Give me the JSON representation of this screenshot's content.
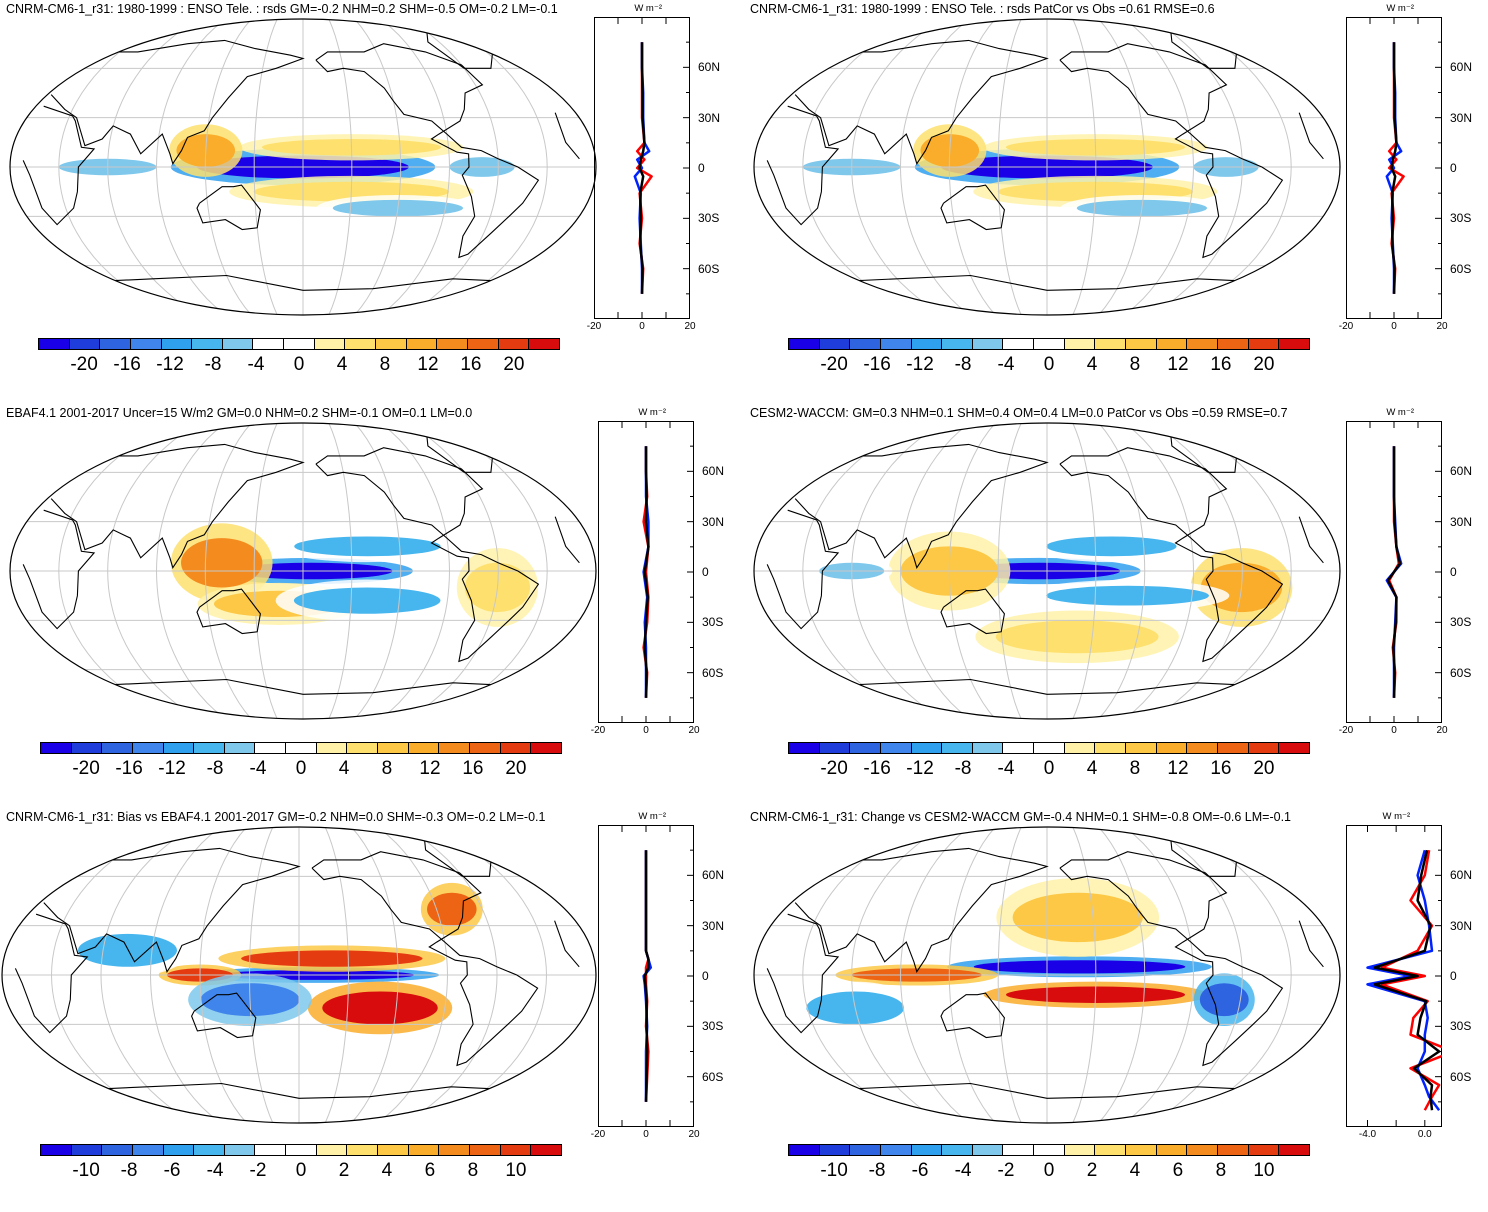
{
  "unit_label": "W m⁻²",
  "colors": {
    "palette": [
      "#1a00e6",
      "#1f3ddb",
      "#2f64e0",
      "#3f85ec",
      "#2fa0ee",
      "#48b6ee",
      "#7fc8ec",
      "#ffffff",
      "#ffffff",
      "#fff2a8",
      "#fee06e",
      "#fcc845",
      "#f9ad2a",
      "#f48b1e",
      "#ed6414",
      "#e53b10",
      "#d80c0c"
    ],
    "zonal_model": "#0022ff",
    "zonal_obs": "#ff0000",
    "zonal_mean": "#000000",
    "land_outline": "#000000",
    "grid": "#c8c8c8"
  },
  "panels": [
    {
      "title": "CNRM-CM6-1_r31: 1980-1999 : ENSO Tele. : rsds GM=-0.2 NHM=0.2 SHM=-0.5 OM=-0.2 LM=-0.1",
      "colorbar_labels": [
        "-20",
        "-16",
        "-12",
        "-8",
        "-4",
        "0",
        "4",
        "8",
        "12",
        "16",
        "20"
      ],
      "zonal_x_labels": [
        "-20",
        "0",
        "20"
      ],
      "lat_labels": [
        "60N",
        "30N",
        "0",
        "30S",
        "60S"
      ]
    },
    {
      "title": "CNRM-CM6-1_r31: 1980-1999 : ENSO Tele. : rsds PatCor vs Obs =0.61 RMSE=0.6",
      "colorbar_labels": [
        "-20",
        "-16",
        "-12",
        "-8",
        "-4",
        "0",
        "4",
        "8",
        "12",
        "16",
        "20"
      ],
      "zonal_x_labels": [
        "-20",
        "0",
        "20"
      ],
      "lat_labels": [
        "60N",
        "30N",
        "0",
        "30S",
        "60S"
      ]
    },
    {
      "title": "EBAF4.1 2001-2017 Uncer=15 W/m2 GM=0.0 NHM=0.2 SHM=-0.1 OM=0.1 LM=0.0",
      "colorbar_labels": [
        "-20",
        "-16",
        "-12",
        "-8",
        "-4",
        "0",
        "4",
        "8",
        "12",
        "16",
        "20"
      ],
      "zonal_x_labels": [
        "-20",
        "0",
        "20"
      ],
      "lat_labels": [
        "60N",
        "30N",
        "0",
        "30S",
        "60S"
      ]
    },
    {
      "title": "CESM2-WACCM: GM=0.3 NHM=0.1 SHM=0.4 OM=0.4 LM=0.0 PatCor vs Obs =0.59 RMSE=0.7",
      "colorbar_labels": [
        "-20",
        "-16",
        "-12",
        "-8",
        "-4",
        "0",
        "4",
        "8",
        "12",
        "16",
        "20"
      ],
      "zonal_x_labels": [
        "-20",
        "0",
        "20"
      ],
      "lat_labels": [
        "60N",
        "30N",
        "0",
        "30S",
        "60S"
      ]
    },
    {
      "title": "CNRM-CM6-1_r31: Bias vs EBAF4.1 2001-2017 GM=-0.2 NHM=0.0 SHM=-0.3 OM=-0.2 LM=-0.1",
      "colorbar_labels": [
        "-10",
        "-8",
        "-6",
        "-4",
        "-2",
        "0",
        "2",
        "4",
        "6",
        "8",
        "10"
      ],
      "zonal_x_labels": [
        "-20",
        "0",
        "20"
      ],
      "lat_labels": [
        "60N",
        "30N",
        "0",
        "30S",
        "60S"
      ]
    },
    {
      "title": "CNRM-CM6-1_r31: Change vs CESM2-WACCM GM=-0.4 NHM=0.1 SHM=-0.8 OM=-0.6 LM=-0.1",
      "colorbar_labels": [
        "-10",
        "-8",
        "-6",
        "-4",
        "-2",
        "0",
        "2",
        "4",
        "6",
        "8",
        "10"
      ],
      "zonal_x_labels": [
        "-4.0",
        "0.0"
      ],
      "lat_labels": [
        "60N",
        "30N",
        "0",
        "30S",
        "60S"
      ]
    }
  ],
  "chart_data": [
    {
      "type": "heatmap",
      "title": "CNRM-CM6-1_r31: 1980-1999 : ENSO Tele. : rsds GM=-0.2 NHM=0.2 SHM=-0.5 OM=-0.2 LM=-0.1",
      "color_levels": [
        -20,
        -16,
        -12,
        -8,
        -4,
        0,
        4,
        8,
        12,
        16,
        20
      ],
      "ylim": [
        -90,
        90
      ],
      "features": [
        {
          "lon": 180,
          "lat": 0,
          "dlon": 65,
          "dlat": 7,
          "v": -20
        },
        {
          "lon": 210,
          "lat": -15,
          "dlon": 60,
          "dlat": 6,
          "v": 6
        },
        {
          "lon": 210,
          "lat": 12,
          "dlon": 55,
          "dlat": 5,
          "v": 6
        },
        {
          "lon": 120,
          "lat": 10,
          "dlon": 18,
          "dlat": 10,
          "v": 10
        },
        {
          "lon": 240,
          "lat": -25,
          "dlon": 40,
          "dlat": 5,
          "v": -6
        },
        {
          "lon": 60,
          "lat": 0,
          "dlon": 30,
          "dlat": 5,
          "v": -4
        },
        {
          "lon": 290,
          "lat": 0,
          "dlon": 20,
          "dlat": 6,
          "v": -5
        }
      ],
      "zonal": {
        "lat": [
          -75,
          -60,
          -45,
          -30,
          -15,
          -5,
          0,
          5,
          10,
          15,
          30,
          45,
          60,
          75
        ],
        "model": [
          0,
          0,
          -0.5,
          -1,
          -0.5,
          -3,
          0,
          -2,
          3,
          1,
          0.5,
          0.5,
          0,
          0
        ],
        "obs": [
          0,
          0.5,
          -1,
          0,
          -1,
          4,
          -2,
          1,
          -2,
          1,
          0,
          0,
          0,
          0
        ]
      }
    },
    {
      "type": "heatmap",
      "title": "CNRM-CM6-1_r31: 1980-1999 : ENSO Tele. : rsds PatCor vs Obs =0.61 RMSE=0.6",
      "color_levels": [
        -20,
        -16,
        -12,
        -8,
        -4,
        0,
        4,
        8,
        12,
        16,
        20
      ],
      "ylim": [
        -90,
        90
      ],
      "features": [
        {
          "lon": 180,
          "lat": 0,
          "dlon": 65,
          "dlat": 7,
          "v": -20
        },
        {
          "lon": 210,
          "lat": -15,
          "dlon": 60,
          "dlat": 6,
          "v": 6
        },
        {
          "lon": 210,
          "lat": 12,
          "dlon": 55,
          "dlat": 5,
          "v": 6
        },
        {
          "lon": 120,
          "lat": 10,
          "dlon": 18,
          "dlat": 10,
          "v": 10
        },
        {
          "lon": 240,
          "lat": -25,
          "dlon": 40,
          "dlat": 5,
          "v": -6
        },
        {
          "lon": 60,
          "lat": 0,
          "dlon": 30,
          "dlat": 5,
          "v": -4
        },
        {
          "lon": 290,
          "lat": 0,
          "dlon": 20,
          "dlat": 6,
          "v": -5
        }
      ],
      "zonal": {
        "lat": [
          -75,
          -60,
          -45,
          -30,
          -15,
          -5,
          0,
          5,
          10,
          15,
          30,
          45,
          60,
          75
        ],
        "model": [
          0,
          0,
          -0.5,
          -1,
          -0.5,
          -3,
          0,
          -2,
          3,
          1,
          0.5,
          0.5,
          0,
          0
        ],
        "obs": [
          0,
          0.5,
          -1,
          0,
          -1,
          4,
          -2,
          1,
          -2,
          1,
          0,
          0,
          0,
          0
        ]
      }
    },
    {
      "type": "heatmap",
      "title": "EBAF4.1 2001-2017 Uncer=15 W/m2 GM=0.0 NHM=0.2 SHM=-0.1 OM=0.1 LM=0.0",
      "color_levels": [
        -20,
        -16,
        -12,
        -8,
        -4,
        0,
        4,
        8,
        12,
        16,
        20
      ],
      "ylim": [
        -90,
        90
      ],
      "features": [
        {
          "lon": 185,
          "lat": 0,
          "dlon": 50,
          "dlat": 5,
          "v": -20
        },
        {
          "lon": 130,
          "lat": 5,
          "dlon": 25,
          "dlat": 15,
          "v": 12
        },
        {
          "lon": 165,
          "lat": -20,
          "dlon": 40,
          "dlat": 8,
          "v": 8
        },
        {
          "lon": 220,
          "lat": -18,
          "dlon": 45,
          "dlat": 8,
          "v": -8
        },
        {
          "lon": 220,
          "lat": 15,
          "dlon": 45,
          "dlat": 6,
          "v": -8
        },
        {
          "lon": 300,
          "lat": -10,
          "dlon": 20,
          "dlat": 15,
          "v": 4
        }
      ],
      "zonal": {
        "lat": [
          -75,
          -60,
          -45,
          -30,
          -15,
          0,
          15,
          30,
          45,
          60,
          75
        ],
        "model": [
          0,
          0,
          0,
          -0.5,
          0.5,
          -1,
          1,
          1,
          0,
          0,
          0
        ],
        "obs": [
          0,
          0.5,
          -1,
          0.5,
          1,
          0,
          1,
          -1,
          0.5,
          0,
          0
        ]
      }
    },
    {
      "type": "heatmap",
      "title": "CESM2-WACCM: GM=0.3 NHM=0.1 SHM=0.4 OM=0.4 LM=0.0 PatCor vs Obs =0.59 RMSE=0.7",
      "color_levels": [
        -20,
        -16,
        -12,
        -8,
        -4,
        0,
        4,
        8,
        12,
        16,
        20
      ],
      "ylim": [
        -90,
        90
      ],
      "features": [
        {
          "lon": 175,
          "lat": 0,
          "dlon": 50,
          "dlat": 5,
          "v": -20
        },
        {
          "lon": 120,
          "lat": 0,
          "dlon": 30,
          "dlat": 15,
          "v": 8
        },
        {
          "lon": 300,
          "lat": -10,
          "dlon": 25,
          "dlat": 15,
          "v": 10
        },
        {
          "lon": 230,
          "lat": -15,
          "dlon": 50,
          "dlat": 6,
          "v": -8
        },
        {
          "lon": 220,
          "lat": 15,
          "dlon": 40,
          "dlat": 6,
          "v": -8
        },
        {
          "lon": 60,
          "lat": 0,
          "dlon": 20,
          "dlat": 5,
          "v": -5
        },
        {
          "lon": 200,
          "lat": -40,
          "dlon": 50,
          "dlat": 10,
          "v": 4
        }
      ],
      "zonal": {
        "lat": [
          -75,
          -60,
          -45,
          -30,
          -15,
          -5,
          0,
          5,
          15,
          30,
          45,
          60,
          75
        ],
        "model": [
          0,
          0,
          0,
          0.5,
          1,
          -3,
          0,
          3,
          1,
          0.5,
          0,
          0,
          0
        ],
        "obs": [
          0,
          0.5,
          -0.5,
          1,
          1,
          -2,
          0,
          2,
          1,
          0,
          0,
          0,
          0
        ]
      }
    },
    {
      "type": "heatmap",
      "title": "CNRM-CM6-1_r31: Bias vs EBAF4.1 2001-2017 GM=-0.2 NHM=0.0 SHM=-0.3 OM=-0.2 LM=-0.1",
      "color_levels": [
        -10,
        -8,
        -6,
        -4,
        -2,
        0,
        2,
        4,
        6,
        8,
        10
      ],
      "ylim": [
        -90,
        90
      ],
      "features": [
        {
          "lon": 190,
          "lat": 0,
          "dlon": 60,
          "dlat": 3,
          "v": -10
        },
        {
          "lon": 200,
          "lat": 10,
          "dlon": 55,
          "dlat": 5,
          "v": 9
        },
        {
          "lon": 230,
          "lat": -20,
          "dlon": 35,
          "dlat": 10,
          "v": 10
        },
        {
          "lon": 120,
          "lat": 0,
          "dlon": 20,
          "dlat": 4,
          "v": 9
        },
        {
          "lon": 150,
          "lat": -15,
          "dlon": 30,
          "dlat": 10,
          "v": -6
        },
        {
          "lon": 75,
          "lat": 15,
          "dlon": 30,
          "dlat": 10,
          "v": -4
        },
        {
          "lon": 280,
          "lat": 40,
          "dlon": 15,
          "dlat": 10,
          "v": 8
        }
      ],
      "zonal": {
        "lat": [
          -75,
          -60,
          -45,
          -30,
          -15,
          -5,
          0,
          5,
          10,
          15,
          30,
          45,
          60,
          75
        ],
        "model": [
          0,
          0,
          0,
          0.5,
          0,
          -0.5,
          -1,
          2,
          1,
          0,
          0,
          0,
          0,
          0
        ],
        "obs": [
          0,
          0.5,
          1,
          0,
          0.5,
          0,
          0,
          0,
          1,
          0,
          0,
          0,
          0,
          0
        ]
      }
    },
    {
      "type": "heatmap",
      "title": "CNRM-CM6-1_r31: Change vs CESM2-WACCM GM=-0.4 NHM=0.1 SHM=-0.8 OM=-0.6 LM=-0.1",
      "color_levels": [
        -10,
        -8,
        -6,
        -4,
        -2,
        0,
        2,
        4,
        6,
        8,
        10
      ],
      "ylim": [
        -90,
        90
      ],
      "features": [
        {
          "lon": 200,
          "lat": 5,
          "dlon": 65,
          "dlat": 4,
          "v": -10
        },
        {
          "lon": 210,
          "lat": -12,
          "dlon": 55,
          "dlat": 5,
          "v": 10
        },
        {
          "lon": 200,
          "lat": 35,
          "dlon": 40,
          "dlat": 15,
          "v": 4
        },
        {
          "lon": 100,
          "lat": 0,
          "dlon": 40,
          "dlat": 4,
          "v": 8
        },
        {
          "lon": 290,
          "lat": -15,
          "dlon": 15,
          "dlat": 10,
          "v": -8
        },
        {
          "lon": 60,
          "lat": -20,
          "dlon": 30,
          "dlat": 10,
          "v": -4
        }
      ],
      "zonal": {
        "lat": [
          -80,
          -72,
          -65,
          -55,
          -45,
          -35,
          -25,
          -15,
          -5,
          0,
          5,
          15,
          30,
          45,
          60,
          75
        ],
        "model": [
          1,
          0.3,
          0,
          -0.5,
          0,
          0,
          0.2,
          0,
          -4,
          -1,
          -4,
          0.5,
          0.3,
          0,
          -0.5,
          0
        ],
        "obs": [
          0,
          0.5,
          1,
          -1,
          2,
          -1,
          -0.8,
          0.2,
          -3,
          0,
          -3,
          -0.5,
          0.5,
          -1,
          0,
          0.3
        ]
      }
    }
  ]
}
